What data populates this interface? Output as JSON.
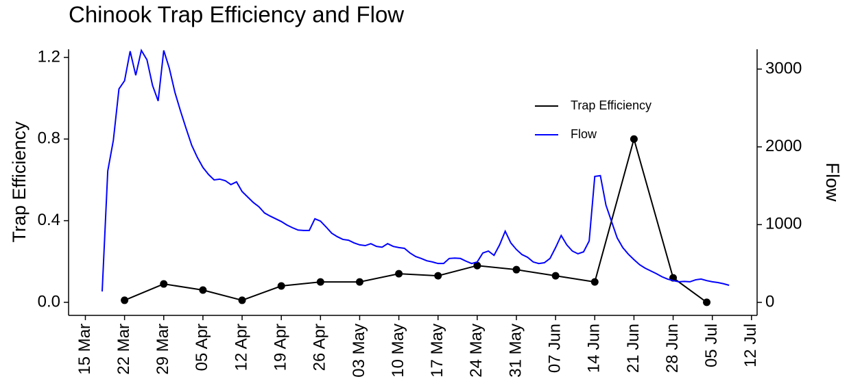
{
  "chart_data": {
    "type": "line",
    "title": "Chinook Trap Efficiency and Flow",
    "ylabel": "Trap Efficiency",
    "y2label": "Flow",
    "xlim": [
      "03-12",
      "07-13"
    ],
    "xticks": [
      {
        "value": "03-15",
        "label": "15 Mar"
      },
      {
        "value": "03-22",
        "label": "22 Mar"
      },
      {
        "value": "03-29",
        "label": "29 Mar"
      },
      {
        "value": "04-05",
        "label": "05 Apr"
      },
      {
        "value": "04-12",
        "label": "12 Apr"
      },
      {
        "value": "04-19",
        "label": "19 Apr"
      },
      {
        "value": "04-26",
        "label": "26 Apr"
      },
      {
        "value": "05-03",
        "label": "03 May"
      },
      {
        "value": "05-10",
        "label": "10 May"
      },
      {
        "value": "05-17",
        "label": "17 May"
      },
      {
        "value": "05-24",
        "label": "24 May"
      },
      {
        "value": "05-31",
        "label": "31 May"
      },
      {
        "value": "06-07",
        "label": "07 Jun"
      },
      {
        "value": "06-14",
        "label": "14 Jun"
      },
      {
        "value": "06-21",
        "label": "21 Jun"
      },
      {
        "value": "06-28",
        "label": "28 Jun"
      },
      {
        "value": "07-05",
        "label": "05 Jul"
      },
      {
        "value": "07-12",
        "label": "12 Jul"
      }
    ],
    "ylim": [
      -0.064,
      1.24
    ],
    "yticks": [
      {
        "value": 0,
        "label": "0.0"
      },
      {
        "value": 0.4,
        "label": "0.4"
      },
      {
        "value": 0.8,
        "label": "0.8"
      },
      {
        "value": 1.2,
        "label": "1.2"
      }
    ],
    "y2lim": [
      -167,
      3255
    ],
    "y2ticks": [
      0,
      1000,
      2000,
      3000
    ],
    "legend": "top-right",
    "series": [
      {
        "name": "Trap Efficiency",
        "color": "#000000",
        "markers": true,
        "x": [
          "03-22",
          "03-29",
          "04-05",
          "04-12",
          "04-19",
          "04-26",
          "05-03",
          "05-10",
          "05-17",
          "05-24",
          "05-31",
          "06-07",
          "06-14",
          "06-21",
          "06-28",
          "07-04"
        ],
        "values": [
          0.01,
          0.09,
          0.06,
          0.01,
          0.08,
          0.1,
          0.1,
          0.14,
          0.13,
          0.18,
          0.16,
          0.13,
          0.1,
          0.8,
          0.12,
          0.0
        ]
      },
      {
        "name": "Flow",
        "color": "#0000ff",
        "axis": "y2",
        "markers": false,
        "x": [
          "03-18",
          "03-19",
          "03-20",
          "03-21",
          "03-22",
          "03-23",
          "03-24",
          "03-25",
          "03-26",
          "03-27",
          "03-28",
          "03-29",
          "03-30",
          "03-31",
          "04-01",
          "04-02",
          "04-03",
          "04-04",
          "04-05",
          "04-06",
          "04-07",
          "04-08",
          "04-09",
          "04-10",
          "04-11",
          "04-12",
          "04-13",
          "04-14",
          "04-15",
          "04-16",
          "04-17",
          "04-18",
          "04-19",
          "04-20",
          "04-21",
          "04-22",
          "04-23",
          "04-24",
          "04-25",
          "04-26",
          "04-27",
          "04-28",
          "04-29",
          "04-30",
          "05-01",
          "05-02",
          "05-03",
          "05-04",
          "05-05",
          "05-06",
          "05-07",
          "05-08",
          "05-09",
          "05-10",
          "05-11",
          "05-12",
          "05-13",
          "05-14",
          "05-15",
          "05-16",
          "05-17",
          "05-18",
          "05-19",
          "05-20",
          "05-21",
          "05-22",
          "05-23",
          "05-24",
          "05-25",
          "05-26",
          "05-27",
          "05-28",
          "05-29",
          "05-30",
          "05-31",
          "06-01",
          "06-02",
          "06-03",
          "06-04",
          "06-05",
          "06-06",
          "06-07",
          "06-08",
          "06-09",
          "06-10",
          "06-11",
          "06-12",
          "06-13",
          "06-14",
          "06-15",
          "06-16",
          "06-17",
          "06-18",
          "06-19",
          "06-20",
          "06-21",
          "06-22",
          "06-23",
          "06-24",
          "06-25",
          "06-26",
          "06-27",
          "06-28",
          "06-29",
          "06-30",
          "07-01",
          "07-02",
          "07-03",
          "07-04",
          "07-05",
          "07-06",
          "07-07",
          "07-08"
        ],
        "values": [
          140,
          1690,
          2085,
          2745,
          2850,
          3230,
          2920,
          3240,
          3120,
          2790,
          2590,
          3240,
          3010,
          2700,
          2460,
          2235,
          2020,
          1865,
          1735,
          1645,
          1575,
          1585,
          1565,
          1515,
          1550,
          1425,
          1355,
          1285,
          1230,
          1150,
          1110,
          1075,
          1040,
          995,
          960,
          930,
          925,
          925,
          1075,
          1045,
          970,
          890,
          845,
          810,
          800,
          765,
          740,
          730,
          755,
          720,
          710,
          755,
          720,
          705,
          695,
          635,
          590,
          565,
          535,
          520,
          500,
          500,
          565,
          570,
          565,
          530,
          500,
          520,
          635,
          660,
          605,
          740,
          915,
          765,
          680,
          615,
          580,
          520,
          500,
          510,
          565,
          705,
          860,
          740,
          660,
          625,
          650,
          790,
          1620,
          1630,
          1250,
          1040,
          830,
          705,
          620,
          550,
          485,
          440,
          405,
          370,
          330,
          300,
          280,
          265,
          270,
          265,
          290,
          300,
          280,
          265,
          255,
          240,
          220
        ]
      }
    ]
  }
}
